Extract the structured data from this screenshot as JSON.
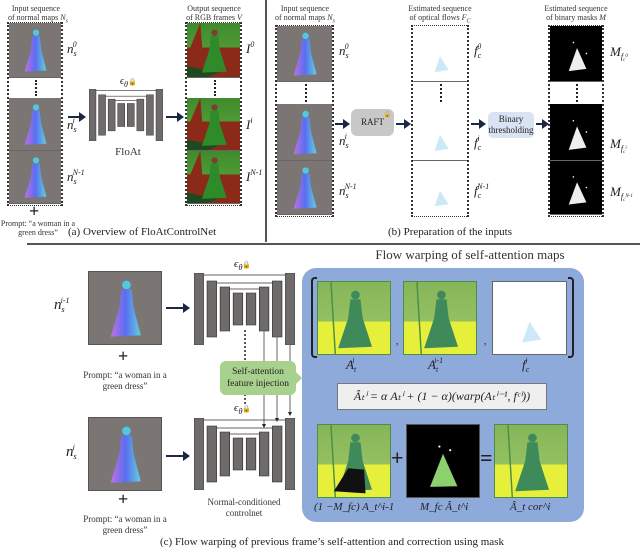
{
  "panel_a": {
    "input_title_1": "Input sequence",
    "input_title_2": "of normal maps ",
    "input_title_var": "N",
    "input_title_sub": "s",
    "input_labels": [
      {
        "base": "n",
        "sub": "s",
        "sup": "0"
      },
      {
        "base": "n",
        "sub": "s",
        "sup": "i"
      },
      {
        "base": "n",
        "sub": "s",
        "sup": "N-1"
      }
    ],
    "output_title_1": "Output sequence",
    "output_title_2": "of RGB frames ",
    "output_title_var": "V",
    "output_labels": [
      {
        "base": "I",
        "sup": "0"
      },
      {
        "base": "I",
        "sup": "i"
      },
      {
        "base": "I",
        "sup": "N-1"
      }
    ],
    "model_symbol": "ϵ",
    "model_symbol_sub": "θ",
    "model_name": "FloAt",
    "plus": "+",
    "prompt_1": "Prompt: “a woman in a",
    "prompt_2": "green dress”",
    "caption": "(a) Overview of FloAtControlNet"
  },
  "panel_b": {
    "input_title_1": "Input sequence",
    "input_title_2": "of normal maps ",
    "input_title_var": "N",
    "input_title_sub": "s",
    "input_labels": [
      {
        "base": "n",
        "sub": "s",
        "sup": "0"
      },
      {
        "base": "n",
        "sub": "s",
        "sup": "i"
      },
      {
        "base": "n",
        "sub": "s",
        "sup": "N-1"
      }
    ],
    "raft_label": "RAFT",
    "flow_title_1": "Estimated sequence",
    "flow_title_2": "of optical flows ",
    "flow_title_var": "F",
    "flow_title_sub": "C",
    "flow_labels": [
      {
        "base": "f",
        "sub": "c",
        "sup": "0"
      },
      {
        "base": "f",
        "sub": "c",
        "sup": "i"
      },
      {
        "base": "f",
        "sub": "c",
        "sup": "N-1"
      }
    ],
    "threshold_label_1": "Binary",
    "threshold_label_2": "thresholding",
    "mask_title_1": "Estimated sequence",
    "mask_title_2": "of binary masks ",
    "mask_title_var": "M",
    "mask_labels": [
      {
        "base": "M",
        "sub": "f",
        "subsup": "0",
        "subsub": "c"
      },
      {
        "base": "M",
        "sub": "f",
        "subsup": "i",
        "subsub": "c"
      },
      {
        "base": "M",
        "sub": "f",
        "subsup": "N-1",
        "subsub": "c"
      }
    ],
    "caption": "(b) Preparation of the inputs"
  },
  "panel_c": {
    "prev_label": {
      "base": "n",
      "sub": "s",
      "sup": "i-1"
    },
    "cur_label": {
      "base": "n",
      "sub": "s",
      "sup": "i"
    },
    "plus": "+",
    "prompt_1": "Prompt: “a woman in a",
    "prompt_2": "green dress”",
    "model_symbol": "ϵ",
    "model_symbol_sub": "θ",
    "injection_1": "Self-attention",
    "injection_2": "feature injection",
    "controlnet_1": "Normal-conditioned",
    "controlnet_2": "controlnet",
    "warp_title": "Flow warping of self-attention maps",
    "top_labels": [
      "A",
      "A",
      "f"
    ],
    "top_label_subs": [
      "t",
      "t",
      "c"
    ],
    "top_label_sups": [
      "i",
      "i-1",
      "i"
    ],
    "comma": ",",
    "formula": "Âₜⁱ = α Aₜⁱ + (1 − α)(warp(Aₜⁱ⁻¹, fᶜⁱ))",
    "bottom_labels": [
      "(1 −M_fc) A_t^i-1",
      "M_fc Â_t^i",
      "Â_t cor^i"
    ],
    "plus_op": "+",
    "equals_op": "=",
    "caption": "(c) Flow warping of previous frame’s self-attention and correction using mask",
    "colors": {
      "panel": "#8eaadb",
      "injection": "#a9d18e",
      "threshold": "#dae3f3",
      "raft": "#c8c8c8"
    }
  }
}
